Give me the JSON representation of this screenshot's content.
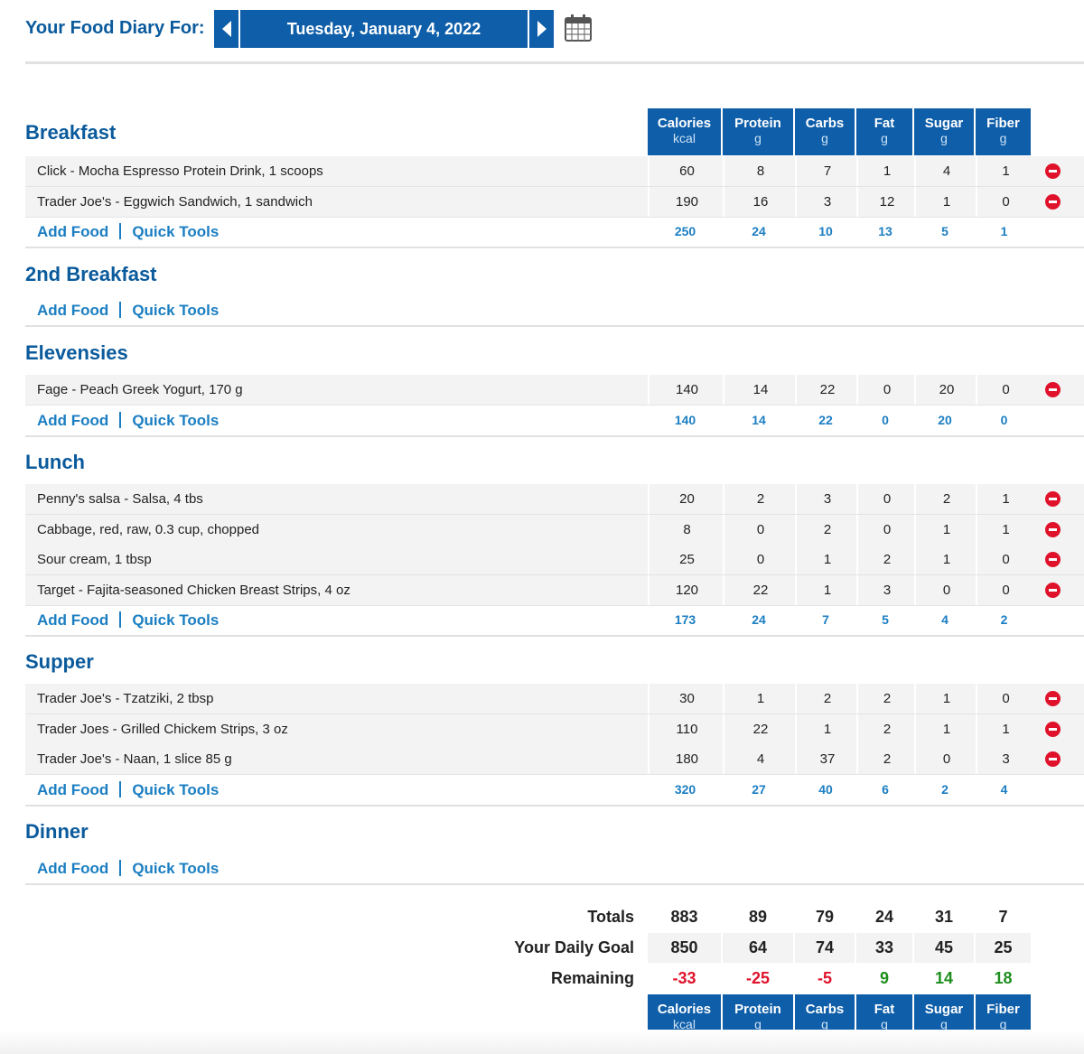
{
  "header": {
    "diary_label": "Your Food Diary For:",
    "date": "Tuesday, January 4, 2022"
  },
  "columns": [
    {
      "name": "Calories",
      "unit": "kcal"
    },
    {
      "name": "Protein",
      "unit": "g"
    },
    {
      "name": "Carbs",
      "unit": "g"
    },
    {
      "name": "Fat",
      "unit": "g"
    },
    {
      "name": "Sugar",
      "unit": "g"
    },
    {
      "name": "Fiber",
      "unit": "g"
    }
  ],
  "add_food_label": "Add Food",
  "quick_tools_label": "Quick Tools",
  "meals": [
    {
      "title": "Breakfast",
      "foods": [
        {
          "name": "Click - Mocha Espresso Protein Drink, 1 scoops",
          "values": [
            "60",
            "8",
            "7",
            "1",
            "4",
            "1"
          ]
        },
        {
          "name": "Trader Joe's - Eggwich Sandwich, 1 sandwich",
          "values": [
            "190",
            "16",
            "3",
            "12",
            "1",
            "0"
          ]
        }
      ],
      "totals": [
        "250",
        "24",
        "10",
        "13",
        "5",
        "1"
      ]
    },
    {
      "title": "2nd Breakfast",
      "foods": [],
      "totals": null
    },
    {
      "title": "Elevensies",
      "foods": [
        {
          "name": "Fage - Peach Greek Yogurt, 170 g",
          "values": [
            "140",
            "14",
            "22",
            "0",
            "20",
            "0"
          ]
        }
      ],
      "totals": [
        "140",
        "14",
        "22",
        "0",
        "20",
        "0"
      ]
    },
    {
      "title": "Lunch",
      "foods": [
        {
          "name": "Penny's salsa - Salsa, 4 tbs",
          "values": [
            "20",
            "2",
            "3",
            "0",
            "2",
            "1"
          ]
        },
        {
          "name": "Cabbage, red, raw, 0.3 cup, chopped",
          "values": [
            "8",
            "0",
            "2",
            "0",
            "1",
            "1"
          ]
        },
        {
          "name": "Sour cream, 1 tbsp",
          "values": [
            "25",
            "0",
            "1",
            "2",
            "1",
            "0"
          ]
        },
        {
          "name": "Target - Fajita-seasoned Chicken Breast Strips, 4 oz",
          "values": [
            "120",
            "22",
            "1",
            "3",
            "0",
            "0"
          ]
        }
      ],
      "totals": [
        "173",
        "24",
        "7",
        "5",
        "4",
        "2"
      ]
    },
    {
      "title": "Supper",
      "foods": [
        {
          "name": "Trader Joe's - Tzatziki, 2 tbsp",
          "values": [
            "30",
            "1",
            "2",
            "2",
            "1",
            "0"
          ]
        },
        {
          "name": "Trader Joes - Grilled Chickem Strips, 3 oz",
          "values": [
            "110",
            "22",
            "1",
            "2",
            "1",
            "1"
          ]
        },
        {
          "name": "Trader Joe's - Naan, 1 slice 85 g",
          "values": [
            "180",
            "4",
            "37",
            "2",
            "0",
            "3"
          ]
        }
      ],
      "totals": [
        "320",
        "27",
        "40",
        "6",
        "2",
        "4"
      ]
    },
    {
      "title": "Dinner",
      "foods": [],
      "totals": null
    }
  ],
  "summary": {
    "totals_label": "Totals",
    "totals": [
      "883",
      "89",
      "79",
      "24",
      "31",
      "7"
    ],
    "goal_label": "Your Daily Goal",
    "goal": [
      "850",
      "64",
      "74",
      "33",
      "45",
      "25"
    ],
    "remaining_label": "Remaining",
    "remaining": [
      "-33",
      "-25",
      "-5",
      "9",
      "14",
      "18"
    ]
  },
  "colors": {
    "brand": "#0e5ea9",
    "link": "#1b7ec2",
    "negative": "#e0122b",
    "positive": "#1e8f1e"
  }
}
